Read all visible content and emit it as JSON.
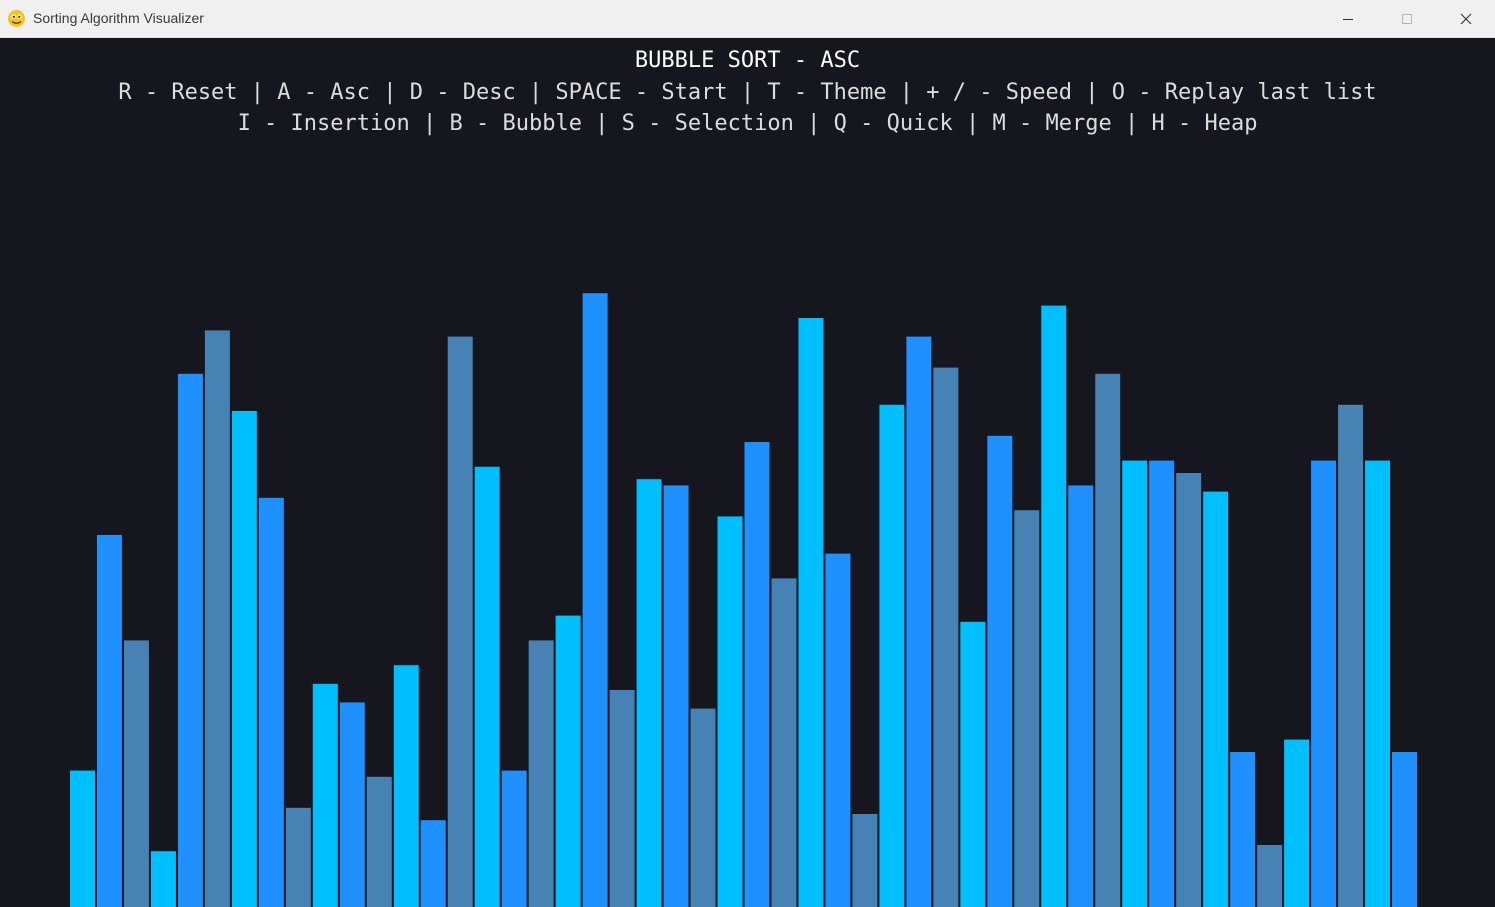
{
  "window": {
    "title": "Sorting Algorithm Visualizer",
    "controls": [
      "minimize",
      "maximize",
      "close"
    ]
  },
  "hud": {
    "title": "BUBBLE SORT - ASC",
    "keys_line1": "R - Reset | A - Asc | D - Desc | SPACE - Start | T - Theme | + / - Speed | O - Replay last list",
    "keys_line2": "I - Insertion | B - Bubble | S - Selection | Q - Quick | M - Merge | H - Heap"
  },
  "colors": {
    "background": "#16161f",
    "bar_palette": [
      "#00bfff",
      "#1e90ff",
      "#4682b4"
    ]
  },
  "chart_data": {
    "type": "bar",
    "values": [
      110,
      300,
      215,
      45,
      430,
      465,
      400,
      330,
      80,
      180,
      165,
      105,
      195,
      70,
      460,
      355,
      110,
      215,
      235,
      495,
      175,
      345,
      340,
      160,
      315,
      375,
      265,
      475,
      285,
      75,
      405,
      460,
      435,
      230,
      380,
      320,
      485,
      340,
      430,
      360,
      360,
      350,
      335,
      125,
      50,
      135,
      360,
      405,
      360,
      125
    ],
    "ylim": [
      0,
      500
    ]
  }
}
